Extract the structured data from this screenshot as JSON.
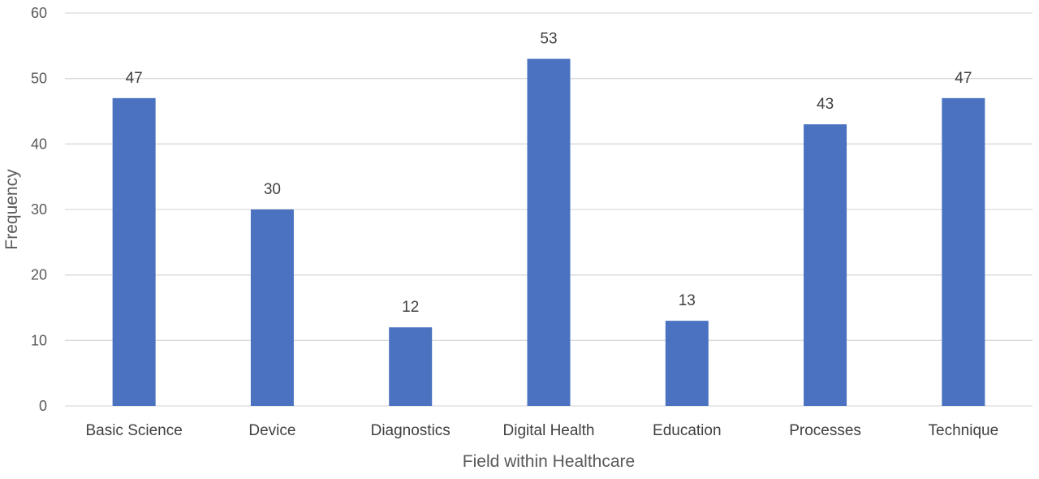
{
  "chart_data": {
    "type": "bar",
    "title": "",
    "xlabel": "Field within Healthcare",
    "ylabel": "Frequency",
    "ylim": [
      0,
      60
    ],
    "yticks": [
      0,
      10,
      20,
      30,
      40,
      50,
      60
    ],
    "grid": true,
    "legend": "none",
    "bar_color": "#4a72c0",
    "categories": [
      "Basic Science",
      "Device",
      "Diagnostics",
      "Digital Health",
      "Education",
      "Processes",
      "Technique"
    ],
    "values": [
      47,
      30,
      12,
      53,
      13,
      43,
      47
    ],
    "data_labels": true
  }
}
